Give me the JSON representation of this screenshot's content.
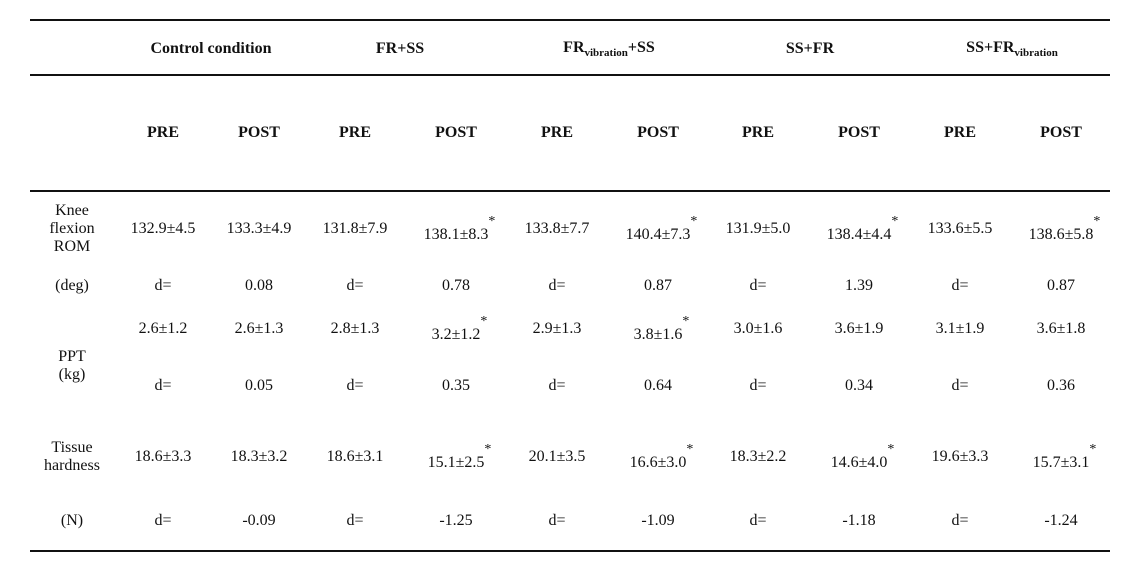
{
  "table": {
    "groups": [
      {
        "base": "Control condition"
      },
      {
        "base": "FR+SS"
      },
      {
        "base": "FR",
        "sub": "vibration",
        "rest": "+SS"
      },
      {
        "base": "SS+FR"
      },
      {
        "base": "SS+FR",
        "sub": "vibration"
      }
    ],
    "subheaders": [
      "PRE",
      "POST",
      "PRE",
      "POST",
      "PRE",
      "POST",
      "PRE",
      "POST",
      "PRE",
      "POST"
    ],
    "rows": [
      {
        "label": "Knee flexion ROM",
        "cells": [
          "132.9±4.5",
          "133.3±4.9",
          "131.8±7.9",
          {
            "value": "138.1±8.3",
            "note": "*"
          },
          "133.8±7.7",
          {
            "value": "140.4±7.3",
            "note": "*"
          },
          "131.9±5.0",
          {
            "value": "138.4±4.4",
            "note": "*"
          },
          "133.6±5.5",
          {
            "value": "138.6±5.8",
            "note": "*"
          }
        ]
      },
      {
        "label": "(deg)",
        "cells": [
          "d=",
          "0.08",
          "d=",
          "0.78",
          "d=",
          "0.87",
          "d=",
          "1.39",
          "d=",
          "0.87"
        ]
      },
      {
        "label": "PPT (kg)",
        "cells": [
          "2.6±1.2",
          "2.6±1.3",
          "2.8±1.3",
          {
            "value": "3.2±1.2",
            "note": "*"
          },
          "2.9±1.3",
          {
            "value": "3.8±1.6",
            "note": "*"
          },
          "3.0±1.6",
          "3.6±1.9",
          "3.1±1.9",
          "3.6±1.8"
        ]
      },
      {
        "cells": [
          "d=",
          "0.05",
          "d=",
          "0.35",
          "d=",
          "0.64",
          "d=",
          "0.34",
          "d=",
          "0.36"
        ]
      },
      {
        "label": "Tissue hardness",
        "cells": [
          "18.6±3.3",
          "18.3±3.2",
          "18.6±3.1",
          {
            "value": "15.1±2.5",
            "note": "*"
          },
          "20.1±3.5",
          {
            "value": "16.6±3.0",
            "note": "*"
          },
          "18.3±2.2",
          {
            "value": "14.6±4.0",
            "note": "*"
          },
          "19.6±3.3",
          {
            "value": "15.7±3.1",
            "note": "*"
          }
        ]
      },
      {
        "label": "(N)",
        "cells": [
          "d=",
          "-0.09",
          "d=",
          "-1.25",
          "d=",
          "-1.09",
          "d=",
          "-1.18",
          "d=",
          "-1.24"
        ]
      }
    ]
  }
}
